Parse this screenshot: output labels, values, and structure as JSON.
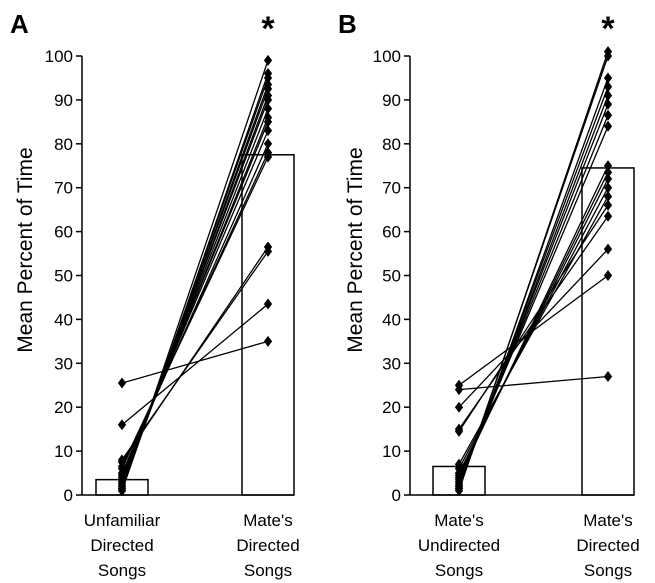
{
  "chart_data": [
    {
      "type": "bar",
      "panel_label": "A",
      "ylabel": "Mean Percent of Time",
      "ylim": [
        0,
        100
      ],
      "yticks": [
        0,
        10,
        20,
        30,
        40,
        50,
        60,
        70,
        80,
        90,
        100
      ],
      "categories": [
        [
          "Unfamiliar",
          "Directed",
          "Songs"
        ],
        [
          "Mate's",
          "Directed",
          "Songs"
        ]
      ],
      "values": [
        3.5,
        77.5
      ],
      "significance": [
        null,
        "*"
      ],
      "paired_individuals": [
        [
          25.5,
          35
        ],
        [
          16,
          43.5
        ],
        [
          8,
          55.5
        ],
        [
          7.5,
          56.5
        ],
        [
          6.5,
          77
        ],
        [
          6,
          78
        ],
        [
          5,
          80
        ],
        [
          4.5,
          83
        ],
        [
          4,
          85
        ],
        [
          3.5,
          86
        ],
        [
          3,
          88
        ],
        [
          2.5,
          90
        ],
        [
          2,
          91
        ],
        [
          2,
          92.5
        ],
        [
          1.5,
          93.5
        ],
        [
          1.5,
          95
        ],
        [
          1,
          96
        ],
        [
          1,
          99
        ]
      ]
    },
    {
      "type": "bar",
      "panel_label": "B",
      "ylabel": "Mean Percent of Time",
      "ylim": [
        0,
        100
      ],
      "yticks": [
        0,
        10,
        20,
        30,
        40,
        50,
        60,
        70,
        80,
        90,
        100
      ],
      "categories": [
        [
          "Mate's",
          "Undirected",
          "Songs"
        ],
        [
          "Mate's",
          "Directed",
          "Songs"
        ]
      ],
      "values": [
        6.5,
        74.5
      ],
      "significance": [
        null,
        "*"
      ],
      "paired_individuals": [
        [
          25,
          50
        ],
        [
          24,
          27
        ],
        [
          20,
          56
        ],
        [
          15,
          63.5
        ],
        [
          14.5,
          66
        ],
        [
          7,
          68
        ],
        [
          6,
          70
        ],
        [
          5,
          72
        ],
        [
          4.5,
          73.5
        ],
        [
          4,
          75
        ],
        [
          3.5,
          84
        ],
        [
          3,
          86.5
        ],
        [
          2.5,
          89
        ],
        [
          2,
          91
        ],
        [
          2,
          93
        ],
        [
          1.5,
          95
        ],
        [
          1.5,
          100
        ],
        [
          1,
          101
        ]
      ]
    }
  ]
}
